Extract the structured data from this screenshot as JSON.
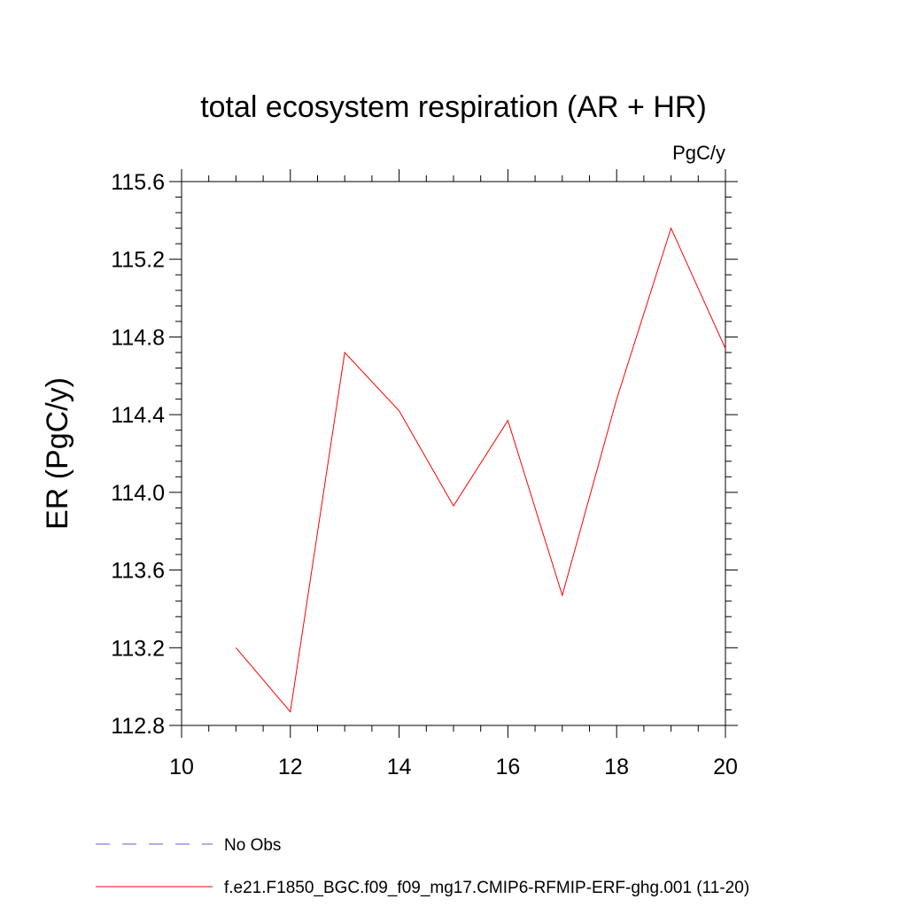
{
  "chart_data": {
    "type": "line",
    "title": "total ecosystem respiration (AR + HR)",
    "units": "PgC/y",
    "xlabel": "",
    "ylabel": "ER  (PgC/y)",
    "xlim": [
      10,
      20
    ],
    "ylim": [
      112.8,
      115.6
    ],
    "x_ticks": [
      10,
      12,
      14,
      16,
      18,
      20
    ],
    "x_tick_labels": [
      "10",
      "12",
      "14",
      "16",
      "18",
      "20"
    ],
    "y_ticks": [
      112.8,
      113.2,
      113.6,
      114.0,
      114.4,
      114.8,
      115.2,
      115.6
    ],
    "y_tick_labels": [
      "112.8",
      "113.2",
      "113.6",
      "114.0",
      "114.4",
      "114.8",
      "115.2",
      "115.6"
    ],
    "grid": false,
    "legend_position": "bottom",
    "series": [
      {
        "name": "f.e21.F1850_BGC.f09_f09_mg17.CMIP6-RFMIP-ERF-ghg.001 (11-20)",
        "color": "#ff0000",
        "style": "solid",
        "x": [
          11,
          12,
          13,
          14,
          15,
          16,
          17,
          18,
          19,
          20
        ],
        "y": [
          113.2,
          112.87,
          114.72,
          114.42,
          113.93,
          114.37,
          113.47,
          114.48,
          115.36,
          114.74
        ]
      }
    ],
    "legend": [
      {
        "label": "No Obs",
        "color": "#6a5acd",
        "style": "dashed"
      },
      {
        "label": "f.e21.F1850_BGC.f09_f09_mg17.CMIP6-RFMIP-ERF-ghg.001 (11-20)",
        "color": "#ff0000",
        "style": "solid"
      }
    ]
  }
}
